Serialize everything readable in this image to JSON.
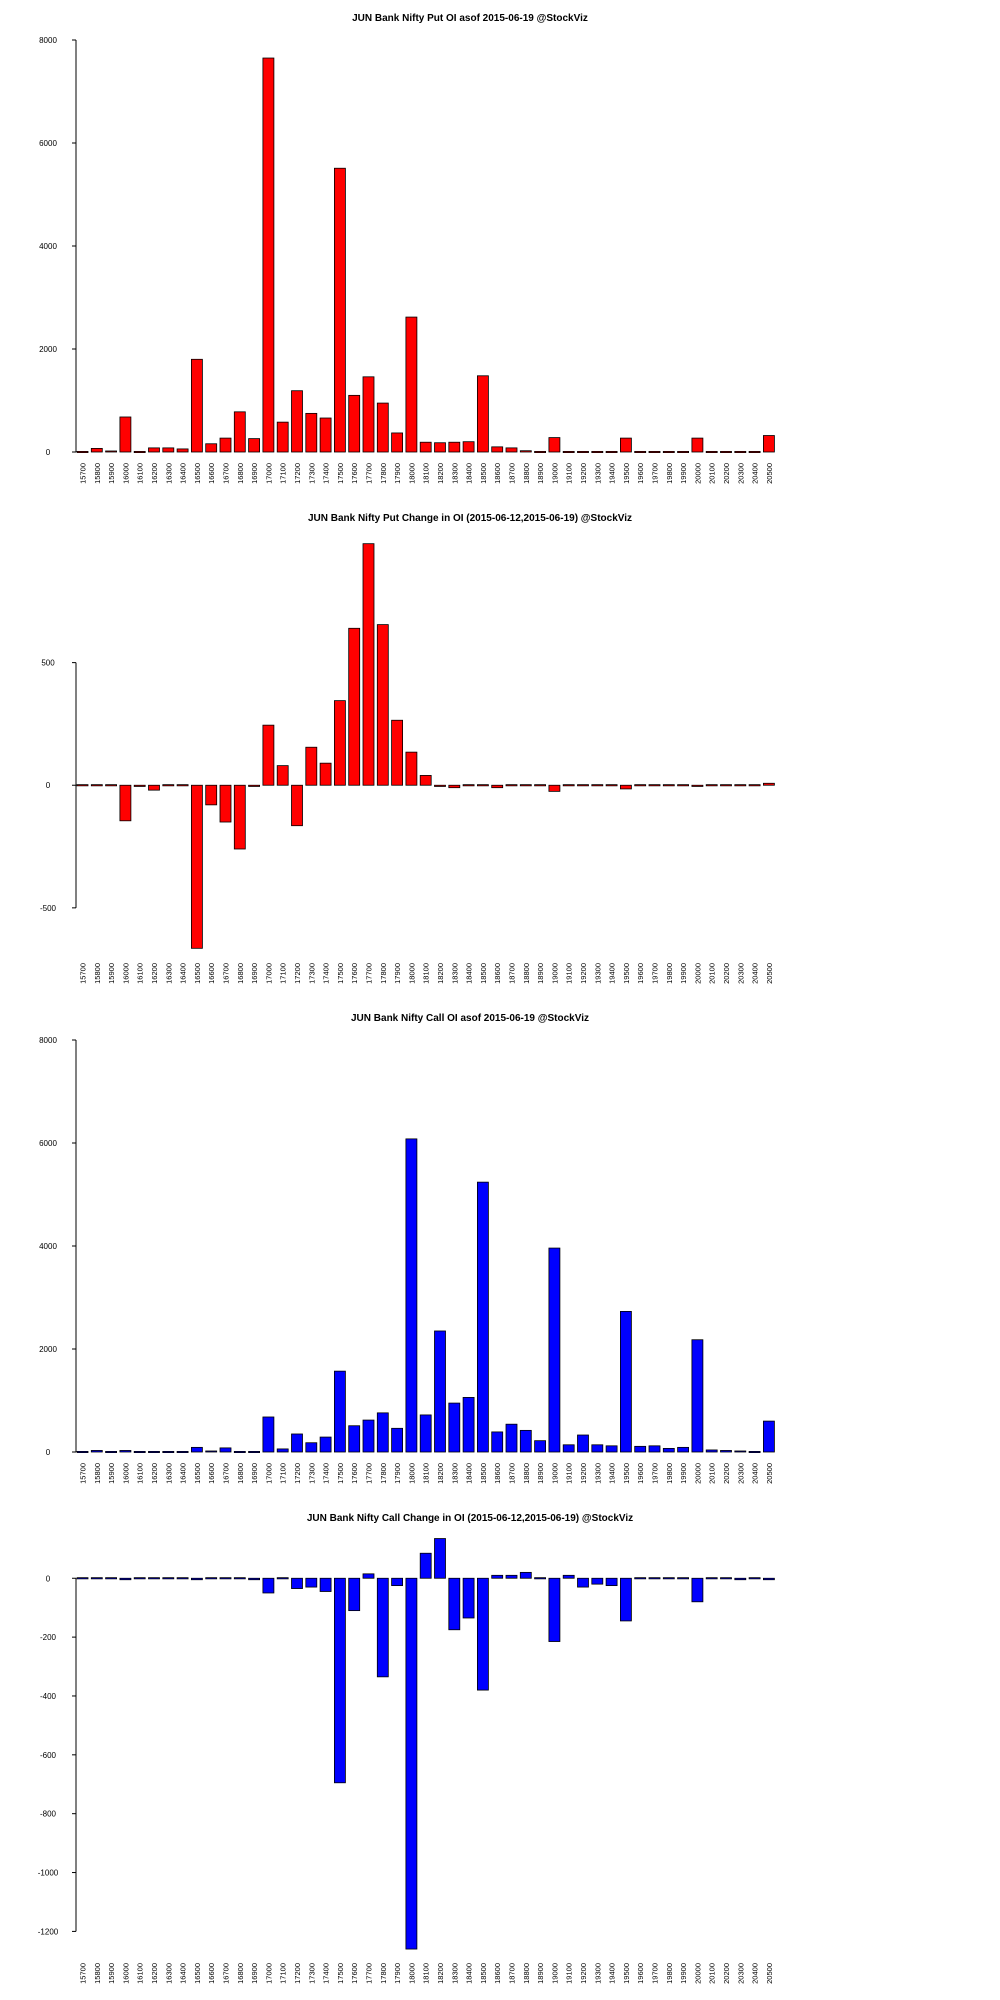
{
  "chart_data": [
    {
      "type": "bar",
      "title": "JUN Bank Nifty Put OI asof 2015-06-19 @StockViz",
      "color": "#ff0000",
      "ylim": [
        0,
        8000
      ],
      "yticks": [
        0,
        2000,
        4000,
        6000,
        8000
      ],
      "categories": [
        "15700",
        "15800",
        "15900",
        "16000",
        "16100",
        "16200",
        "16300",
        "16400",
        "16500",
        "16600",
        "16700",
        "16800",
        "16900",
        "17000",
        "17100",
        "17200",
        "17300",
        "17400",
        "17500",
        "17600",
        "17700",
        "17800",
        "17900",
        "18000",
        "18100",
        "18200",
        "18300",
        "18400",
        "18500",
        "18600",
        "18700",
        "18800",
        "18900",
        "19000",
        "19100",
        "19200",
        "19300",
        "19400",
        "19500",
        "19600",
        "19700",
        "19800",
        "19900",
        "20000",
        "20100",
        "20200",
        "20300",
        "20400",
        "20500"
      ],
      "values": [
        10,
        70,
        20,
        680,
        10,
        80,
        80,
        60,
        1800,
        160,
        270,
        780,
        260,
        7650,
        580,
        1190,
        750,
        660,
        5510,
        1100,
        1460,
        950,
        370,
        2620,
        190,
        180,
        190,
        200,
        1480,
        100,
        80,
        25,
        15,
        280,
        5,
        15,
        5,
        5,
        270,
        5,
        5,
        5,
        5,
        270,
        5,
        5,
        5,
        5,
        320
      ]
    },
    {
      "type": "bar",
      "title": "JUN Bank Nifty Put Change in OI (2015-06-12,2015-06-19) @StockViz",
      "color": "#ff0000",
      "ylim": [
        -680,
        1000
      ],
      "yticks": [
        -500,
        0,
        500
      ],
      "categories": [
        "15700",
        "15800",
        "15900",
        "16000",
        "16100",
        "16200",
        "16300",
        "16400",
        "16500",
        "16600",
        "16700",
        "16800",
        "16900",
        "17000",
        "17100",
        "17200",
        "17300",
        "17400",
        "17500",
        "17600",
        "17700",
        "17800",
        "17900",
        "18000",
        "18100",
        "18200",
        "18300",
        "18400",
        "18500",
        "18600",
        "18700",
        "18800",
        "18900",
        "19000",
        "19100",
        "19200",
        "19300",
        "19400",
        "19500",
        "19600",
        "19700",
        "19800",
        "19900",
        "20000",
        "20100",
        "20200",
        "20300",
        "20400",
        "20500"
      ],
      "values": [
        -2,
        2,
        -3,
        -145,
        -5,
        -20,
        -2,
        -3,
        -665,
        -80,
        -150,
        -260,
        -5,
        245,
        80,
        -165,
        155,
        90,
        345,
        640,
        985,
        655,
        265,
        135,
        40,
        -5,
        -10,
        -3,
        -2,
        -10,
        -3,
        -2,
        0,
        -25,
        -3,
        -2,
        -2,
        -2,
        -15,
        -2,
        -2,
        -2,
        -2,
        -5,
        -2,
        -2,
        -2,
        -2,
        8
      ]
    },
    {
      "type": "bar",
      "title": "JUN Bank Nifty Call OI asof 2015-06-19 @StockViz",
      "color": "#0000ff",
      "ylim": [
        0,
        8000
      ],
      "yticks": [
        0,
        2000,
        4000,
        6000,
        8000
      ],
      "categories": [
        "15700",
        "15800",
        "15900",
        "16000",
        "16100",
        "16200",
        "16300",
        "16400",
        "16500",
        "16600",
        "16700",
        "16800",
        "16900",
        "17000",
        "17100",
        "17200",
        "17300",
        "17400",
        "17500",
        "17600",
        "17700",
        "17800",
        "17900",
        "18000",
        "18100",
        "18200",
        "18300",
        "18400",
        "18500",
        "18600",
        "18700",
        "18800",
        "18900",
        "19000",
        "19100",
        "19200",
        "19300",
        "19400",
        "19500",
        "19600",
        "19700",
        "19800",
        "19900",
        "20000",
        "20100",
        "20200",
        "20300",
        "20400",
        "20500"
      ],
      "values": [
        5,
        30,
        10,
        30,
        10,
        10,
        10,
        10,
        90,
        20,
        80,
        10,
        10,
        680,
        60,
        350,
        180,
        290,
        1570,
        510,
        620,
        760,
        460,
        6080,
        720,
        2350,
        950,
        1060,
        5240,
        390,
        540,
        420,
        220,
        3960,
        140,
        330,
        140,
        120,
        2730,
        110,
        120,
        70,
        90,
        2180,
        40,
        30,
        20,
        10,
        600
      ]
    },
    {
      "type": "bar",
      "title": "JUN Bank Nifty Call Change in OI (2015-06-12,2015-06-19) @StockViz",
      "color": "#0000ff",
      "ylim": [
        -1270,
        130
      ],
      "yticks": [
        -1200,
        -1000,
        -800,
        -600,
        -400,
        -200,
        0
      ],
      "categories": [
        "15700",
        "15800",
        "15900",
        "16000",
        "16100",
        "16200",
        "16300",
        "16400",
        "16500",
        "16600",
        "16700",
        "16800",
        "16900",
        "17000",
        "17100",
        "17200",
        "17300",
        "17400",
        "17500",
        "17600",
        "17700",
        "17800",
        "17900",
        "18000",
        "18100",
        "18200",
        "18300",
        "18400",
        "18500",
        "18600",
        "18700",
        "18800",
        "18900",
        "19000",
        "19100",
        "19200",
        "19300",
        "19400",
        "19500",
        "19600",
        "19700",
        "19800",
        "19900",
        "20000",
        "20100",
        "20200",
        "20300",
        "20400",
        "20500"
      ],
      "values": [
        -2,
        -3,
        -2,
        -5,
        -2,
        -2,
        -2,
        -2,
        -5,
        -2,
        -2,
        -2,
        -5,
        -50,
        -3,
        -35,
        -30,
        -45,
        -695,
        -110,
        15,
        -335,
        -25,
        -1260,
        85,
        135,
        -175,
        -135,
        -380,
        10,
        10,
        20,
        -3,
        -215,
        10,
        -30,
        -20,
        -25,
        -145,
        -3,
        -2,
        -2,
        -3,
        -80,
        -2,
        -2,
        -5,
        -3,
        -5
      ]
    }
  ]
}
